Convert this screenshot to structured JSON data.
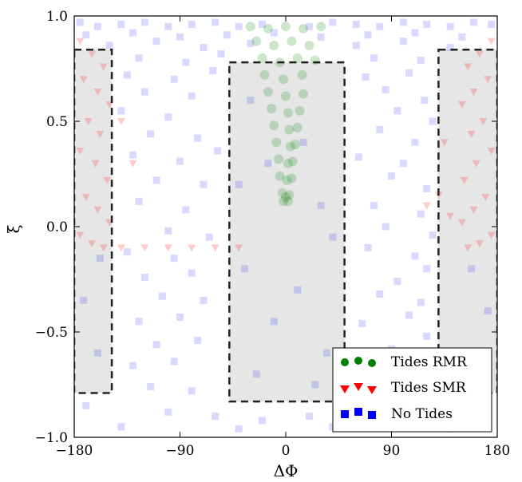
{
  "chart_data": {
    "type": "scatter",
    "title": "",
    "xlabel": "ΔΦ",
    "ylabel": "ξ",
    "xlim": [
      -180,
      180
    ],
    "ylim": [
      -1.0,
      1.0
    ],
    "xticks": [
      -180,
      -90,
      0,
      90,
      180
    ],
    "xtick_labels": [
      "−180",
      "−90",
      "0",
      "90",
      "180"
    ],
    "yticks": [
      -1.0,
      -0.5,
      0.0,
      0.5,
      1.0
    ],
    "ytick_labels": [
      "−1.0",
      "−0.5",
      "0.0",
      "0.5",
      "1.0"
    ],
    "grid": false,
    "legend_position": "bottom-right",
    "shaded_regions": [
      {
        "x": [
          -180,
          -148
        ],
        "y": [
          -0.79,
          0.84
        ]
      },
      {
        "x": [
          -48,
          50
        ],
        "y": [
          -0.83,
          0.78
        ]
      },
      {
        "x": [
          130,
          180
        ],
        "y": [
          -0.79,
          0.84
        ]
      }
    ],
    "series": [
      {
        "name": "No Tides",
        "marker": "square",
        "color": "#0000ff",
        "opacity": 0.15,
        "points": [
          [
            -175,
            0.97
          ],
          [
            -160,
            0.95
          ],
          [
            -140,
            0.96
          ],
          [
            -120,
            0.97
          ],
          [
            -100,
            0.95
          ],
          [
            -80,
            0.96
          ],
          [
            -60,
            0.97
          ],
          [
            -40,
            0.95
          ],
          [
            -20,
            0.96
          ],
          [
            20,
            0.95
          ],
          [
            40,
            0.97
          ],
          [
            60,
            0.96
          ],
          [
            80,
            0.95
          ],
          [
            100,
            0.97
          ],
          [
            120,
            0.96
          ],
          [
            140,
            0.95
          ],
          [
            160,
            0.97
          ],
          [
            175,
            0.96
          ],
          [
            -170,
            0.91
          ],
          [
            -130,
            0.92
          ],
          [
            -90,
            0.9
          ],
          [
            -50,
            0.91
          ],
          [
            -10,
            0.92
          ],
          [
            30,
            0.9
          ],
          [
            70,
            0.91
          ],
          [
            110,
            0.92
          ],
          [
            150,
            0.9
          ],
          [
            -150,
            0.86
          ],
          [
            -110,
            0.88
          ],
          [
            -70,
            0.85
          ],
          [
            -30,
            0.87
          ],
          [
            60,
            0.86
          ],
          [
            100,
            0.88
          ],
          [
            140,
            0.85
          ],
          [
            -125,
            0.8
          ],
          [
            -85,
            0.78
          ],
          [
            -55,
            0.82
          ],
          [
            75,
            0.8
          ],
          [
            115,
            0.79
          ],
          [
            -135,
            0.72
          ],
          [
            -95,
            0.7
          ],
          [
            -62,
            0.74
          ],
          [
            68,
            0.71
          ],
          [
            105,
            0.73
          ],
          [
            -120,
            0.64
          ],
          [
            -80,
            0.62
          ],
          [
            85,
            0.65
          ],
          [
            118,
            0.6
          ],
          [
            -140,
            0.55
          ],
          [
            -100,
            0.52
          ],
          [
            95,
            0.55
          ],
          [
            125,
            0.5
          ],
          [
            -115,
            0.44
          ],
          [
            -75,
            0.42
          ],
          [
            80,
            0.46
          ],
          [
            110,
            0.4
          ],
          [
            -130,
            0.34
          ],
          [
            -90,
            0.31
          ],
          [
            -58,
            0.36
          ],
          [
            62,
            0.33
          ],
          [
            100,
            0.3
          ],
          [
            -110,
            0.22
          ],
          [
            -70,
            0.2
          ],
          [
            90,
            0.24
          ],
          [
            120,
            0.18
          ],
          [
            -125,
            0.12
          ],
          [
            -85,
            0.08
          ],
          [
            75,
            0.1
          ],
          [
            115,
            0.06
          ],
          [
            -100,
            -0.02
          ],
          [
            -65,
            -0.05
          ],
          [
            85,
            0.0
          ],
          [
            125,
            -0.04
          ],
          [
            -135,
            -0.12
          ],
          [
            -95,
            -0.15
          ],
          [
            70,
            -0.1
          ],
          [
            110,
            -0.14
          ],
          [
            -120,
            -0.24
          ],
          [
            -80,
            -0.22
          ],
          [
            95,
            -0.26
          ],
          [
            120,
            -0.2
          ],
          [
            -105,
            -0.33
          ],
          [
            -70,
            -0.35
          ],
          [
            80,
            -0.32
          ],
          [
            115,
            -0.36
          ],
          [
            -125,
            -0.45
          ],
          [
            -90,
            -0.43
          ],
          [
            65,
            -0.46
          ],
          [
            105,
            -0.42
          ],
          [
            -110,
            -0.56
          ],
          [
            -75,
            -0.54
          ],
          [
            90,
            -0.58
          ],
          [
            120,
            -0.52
          ],
          [
            -130,
            -0.66
          ],
          [
            -95,
            -0.64
          ],
          [
            70,
            -0.68
          ],
          [
            110,
            -0.62
          ],
          [
            -115,
            -0.76
          ],
          [
            -80,
            -0.78
          ],
          [
            85,
            -0.75
          ],
          [
            125,
            -0.79
          ],
          [
            -100,
            -0.88
          ],
          [
            -60,
            -0.9
          ],
          [
            -20,
            -0.92
          ],
          [
            20,
            -0.9
          ],
          [
            60,
            -0.88
          ],
          [
            100,
            -0.91
          ],
          [
            -140,
            -0.95
          ],
          [
            -40,
            -0.96
          ],
          [
            40,
            -0.95
          ],
          [
            140,
            -0.96
          ],
          [
            -170,
            -0.85
          ],
          [
            -160,
            -0.6
          ],
          [
            -172,
            -0.35
          ],
          [
            -158,
            -0.15
          ],
          [
            170,
            -0.88
          ],
          [
            160,
            -0.65
          ],
          [
            172,
            -0.4
          ],
          [
            158,
            -0.2
          ],
          [
            -30,
            0.6
          ],
          [
            -15,
            0.3
          ],
          [
            15,
            0.4
          ],
          [
            30,
            0.1
          ],
          [
            -35,
            -0.2
          ],
          [
            -10,
            -0.45
          ],
          [
            10,
            -0.3
          ],
          [
            35,
            -0.6
          ],
          [
            -25,
            -0.7
          ],
          [
            25,
            -0.75
          ],
          [
            -40,
            0.2
          ],
          [
            40,
            -0.05
          ]
        ]
      },
      {
        "name": "Tides SMR",
        "marker": "triangle-down",
        "color": "#ff0000",
        "opacity": 0.2,
        "points": [
          [
            -175,
            0.88
          ],
          [
            -165,
            0.82
          ],
          [
            -155,
            0.76
          ],
          [
            -172,
            0.7
          ],
          [
            -160,
            0.64
          ],
          [
            -150,
            0.58
          ],
          [
            -168,
            0.5
          ],
          [
            -158,
            0.44
          ],
          [
            -175,
            0.36
          ],
          [
            -162,
            0.3
          ],
          [
            -152,
            0.22
          ],
          [
            -170,
            0.14
          ],
          [
            -160,
            0.08
          ],
          [
            -150,
            0.02
          ],
          [
            -175,
            -0.04
          ],
          [
            -165,
            -0.08
          ],
          [
            -155,
            -0.1
          ],
          [
            -140,
            -0.1
          ],
          [
            -120,
            -0.1
          ],
          [
            -100,
            -0.1
          ],
          [
            -80,
            -0.1
          ],
          [
            -60,
            -0.1
          ],
          [
            -40,
            -0.1
          ],
          [
            175,
            0.88
          ],
          [
            165,
            0.82
          ],
          [
            155,
            0.76
          ],
          [
            172,
            0.7
          ],
          [
            160,
            0.64
          ],
          [
            150,
            0.58
          ],
          [
            168,
            0.5
          ],
          [
            158,
            0.44
          ],
          [
            175,
            0.36
          ],
          [
            162,
            0.3
          ],
          [
            152,
            0.22
          ],
          [
            170,
            0.14
          ],
          [
            160,
            0.08
          ],
          [
            150,
            0.02
          ],
          [
            175,
            -0.04
          ],
          [
            165,
            -0.08
          ],
          [
            155,
            -0.1
          ],
          [
            140,
            0.05
          ],
          [
            130,
            0.15
          ],
          [
            120,
            0.1
          ],
          [
            -130,
            0.3
          ],
          [
            -140,
            0.5
          ],
          [
            135,
            0.4
          ]
        ]
      },
      {
        "name": "Tides RMR",
        "marker": "circle",
        "color": "#008000",
        "opacity": 0.2,
        "points": [
          [
            -30,
            0.95
          ],
          [
            -15,
            0.94
          ],
          [
            0,
            0.95
          ],
          [
            15,
            0.94
          ],
          [
            30,
            0.95
          ],
          [
            -25,
            0.88
          ],
          [
            -10,
            0.86
          ],
          [
            5,
            0.88
          ],
          [
            20,
            0.86
          ],
          [
            -20,
            0.8
          ],
          [
            -5,
            0.78
          ],
          [
            10,
            0.8
          ],
          [
            25,
            0.79
          ],
          [
            -18,
            0.72
          ],
          [
            -2,
            0.7
          ],
          [
            14,
            0.72
          ],
          [
            -15,
            0.64
          ],
          [
            0,
            0.62
          ],
          [
            15,
            0.63
          ],
          [
            -12,
            0.56
          ],
          [
            2,
            0.54
          ],
          [
            12,
            0.55
          ],
          [
            -10,
            0.48
          ],
          [
            3,
            0.46
          ],
          [
            10,
            0.47
          ],
          [
            -8,
            0.4
          ],
          [
            4,
            0.38
          ],
          [
            8,
            0.39
          ],
          [
            -6,
            0.32
          ],
          [
            2,
            0.3
          ],
          [
            6,
            0.31
          ],
          [
            -5,
            0.24
          ],
          [
            1,
            0.22
          ],
          [
            5,
            0.23
          ],
          [
            -3,
            0.16
          ],
          [
            0,
            0.14
          ],
          [
            3,
            0.15
          ],
          [
            -2,
            0.12
          ],
          [
            2,
            0.12
          ]
        ]
      }
    ]
  }
}
